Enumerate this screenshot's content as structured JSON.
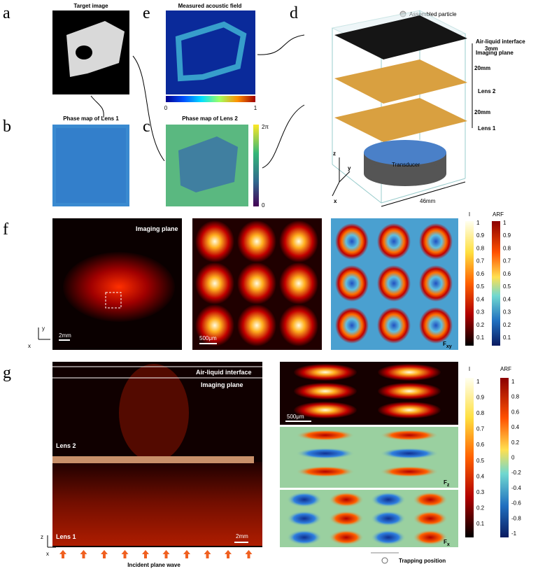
{
  "panel_a": {
    "letter": "a",
    "title": "Target image"
  },
  "panel_b": {
    "letter": "b",
    "title": "Phase map of Lens 1"
  },
  "panel_c": {
    "letter": "c",
    "title": "Phase map of Lens 2",
    "colorbar_ticks": [
      "2π",
      "0"
    ]
  },
  "panel_d": {
    "letter": "d",
    "legend": "Assembled particle",
    "labels": {
      "air_liquid": "Air-liquid interface",
      "gap": "3mm",
      "imaging": "Imaging plane",
      "dist1": "20mm",
      "lens2": "Lens 2",
      "dist2": "20mm",
      "lens1": "Lens 1",
      "transducer": "Transducer",
      "width": "46mm",
      "axis_z": "z",
      "axis_y": "y",
      "axis_x": "x"
    }
  },
  "panel_e": {
    "letter": "e",
    "title": "Measured acoustic field",
    "colorbar_ticks": [
      "0",
      "1"
    ]
  },
  "panel_f": {
    "letter": "f",
    "label": "Imaging plane",
    "scale1": "2mm",
    "scale2": "500μm",
    "force": {
      "main": "F",
      "sub": "xy"
    },
    "axis_y": "y",
    "axis_x": "x",
    "cbar_i_title": "I",
    "cbar_i_ticks": [
      "1",
      "0.9",
      "0.8",
      "0.7",
      "0.6",
      "0.5",
      "0.4",
      "0.3",
      "0.2",
      "0.1"
    ],
    "cbar_arf_title": "ARF",
    "cbar_arf_ticks": [
      "1",
      "0.9",
      "0.8",
      "0.7",
      "0.6",
      "0.5",
      "0.4",
      "0.3",
      "0.2",
      "0.1"
    ]
  },
  "panel_g": {
    "letter": "g",
    "air_liquid": "Air-liquid interface",
    "imaging": "Imaging plane",
    "lens2": "Lens 2",
    "lens1": "Lens 1",
    "scale1": "2mm",
    "scale2": "500μm",
    "incident": "Incident plane wave",
    "axis_z": "z",
    "axis_x": "x",
    "force_z": {
      "main": "F",
      "sub": "z"
    },
    "force_x": {
      "main": "F",
      "sub": "x"
    },
    "trapping": "Trapping position",
    "cbar_i_title": "I",
    "cbar_i_ticks": [
      "1",
      "0.9",
      "0.8",
      "0.7",
      "0.6",
      "0.5",
      "0.4",
      "0.3",
      "0.2",
      "0.1"
    ],
    "cbar_arf_title": "ARF",
    "cbar_arf_ticks": [
      "1",
      "0.8",
      "0.6",
      "0.4",
      "0.2",
      "0",
      "-0.2",
      "-0.4",
      "-0.6",
      "-0.8",
      "-1"
    ]
  }
}
